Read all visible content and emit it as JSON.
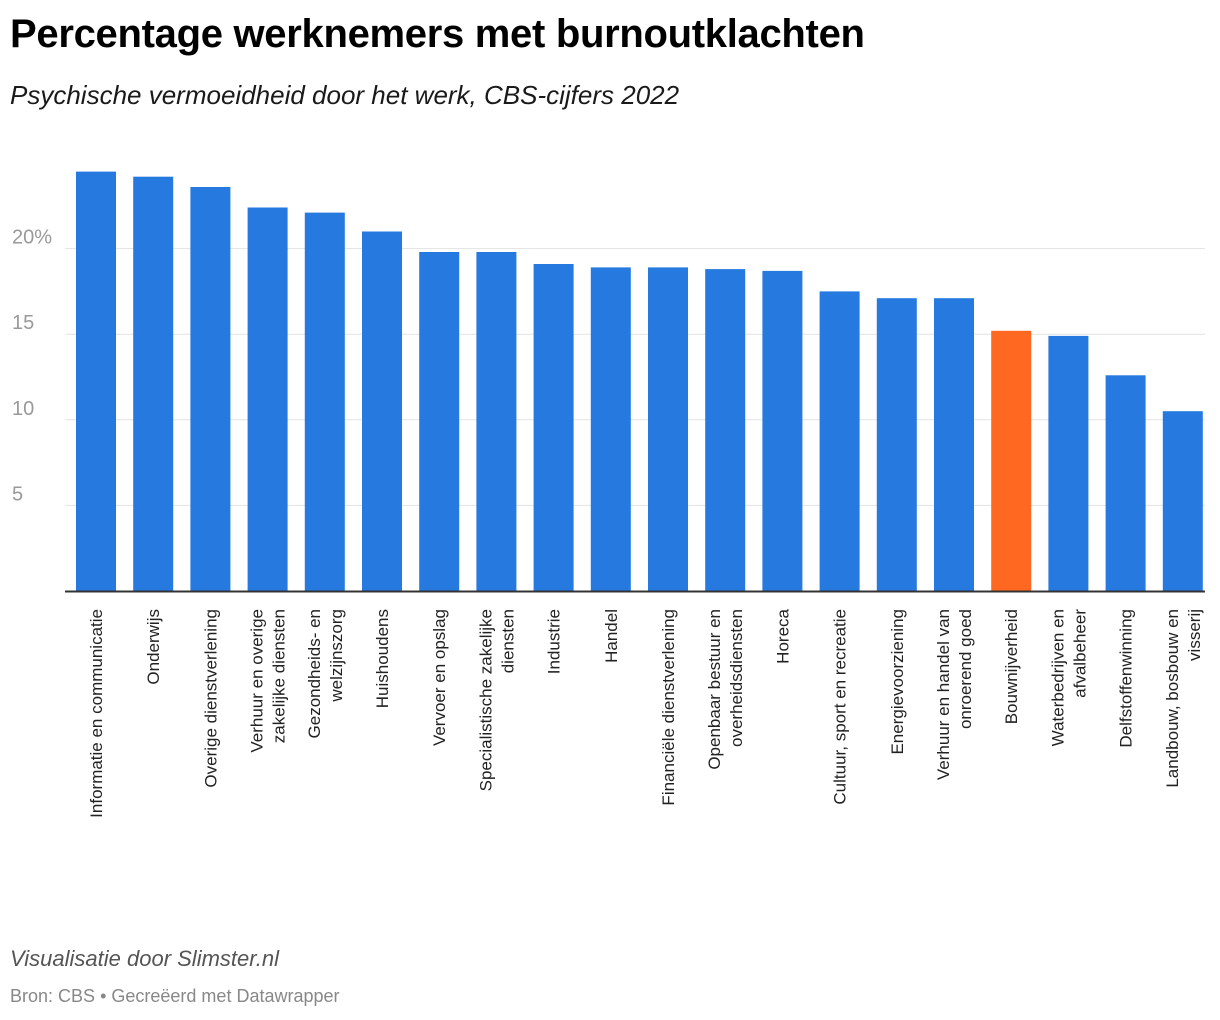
{
  "header": {
    "title": "Percentage werknemers met burnoutklachten",
    "subtitle": "Psychische vermoeidheid door het werk, CBS-cijfers 2022"
  },
  "footer": {
    "credit": "Visualisatie door Slimster.nl",
    "source_label": "Bron: CBS",
    "separator": "•",
    "made_with": "Gecreëerd met Datawrapper"
  },
  "colors": {
    "bar": "#2579df",
    "highlight": "#ff6820",
    "grid": "#e2e2e2",
    "axis": "#333333",
    "tick_text": "#999999"
  },
  "chart_data": {
    "type": "bar",
    "orientation": "vertical",
    "categories": [
      "Informatie en communicatie",
      "Onderwijs",
      "Overige dienstverlening",
      "Verhuur en overige zakelijke diensten",
      "Gezondheids- en welzijnszorg",
      "Huishoudens",
      "Vervoer en opslag",
      "Specialistische zakelijke diensten",
      "Industrie",
      "Handel",
      "Financiële dienstverlening",
      "Openbaar bestuur en overheidsdiensten",
      "Horeca",
      "Cultuur, sport en recreatie",
      "Energievoorziening",
      "Verhuur en handel van onroerend goed",
      "Bouwnijverheid",
      "Waterbedrijven en afvalbeheer",
      "Delfstoffenwinning",
      "Landbouw, bosbouw en visserij"
    ],
    "values": [
      24.5,
      24.2,
      23.6,
      22.4,
      22.1,
      21.0,
      19.8,
      19.8,
      19.1,
      18.9,
      18.9,
      18.8,
      18.7,
      17.5,
      17.1,
      17.1,
      15.2,
      14.9,
      12.6,
      10.5
    ],
    "highlight_category": "Bouwnijverheid",
    "y_ticks": [
      {
        "value": 5,
        "label": "5"
      },
      {
        "value": 10,
        "label": "10"
      },
      {
        "value": 15,
        "label": "15"
      },
      {
        "value": 20,
        "label": "20%"
      }
    ],
    "ylim": [
      0,
      25
    ],
    "grid": true,
    "legend": "none"
  }
}
